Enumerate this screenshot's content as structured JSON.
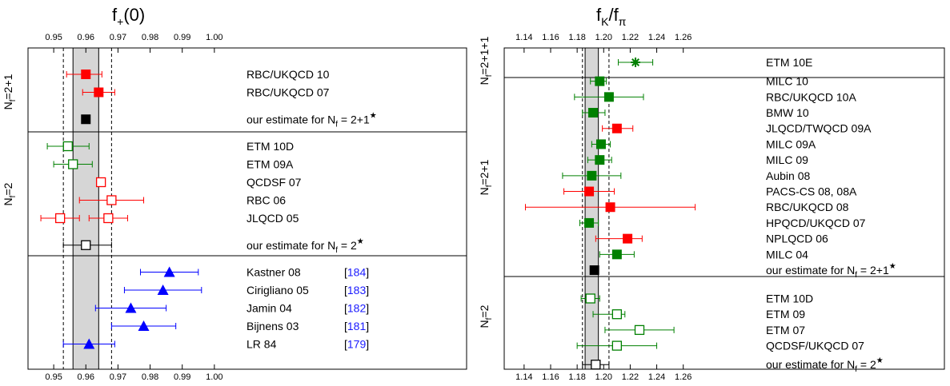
{
  "chart_data": [
    {
      "type": "scatter",
      "title_main": "f",
      "title_sub": "+",
      "title_rest": "(0)",
      "xlim": [
        0.942,
        1.01
      ],
      "xticks": [
        0.95,
        0.96,
        0.97,
        0.98,
        0.99,
        1.0
      ],
      "xtick_labels": [
        "0.95",
        "0.96",
        "0.97",
        "0.98",
        "0.99",
        "1.00"
      ],
      "band": [
        0.956,
        0.964
      ],
      "dashed_lines": [
        0.953,
        0.968
      ],
      "groups": [
        {
          "label_main": "N",
          "label_sub": "f",
          "label_rest": "=2+1",
          "rows": [
            0,
            2
          ]
        },
        {
          "label_main": "N",
          "label_sub": "f",
          "label_rest": "=2",
          "rows": [
            3,
            9
          ]
        },
        {
          "label_main": "",
          "label_sub": "",
          "label_rest": "",
          "rows": [
            10,
            14
          ]
        }
      ],
      "entries": [
        {
          "row": 0,
          "label": "RBC/UKQCD 10",
          "value": 0.96,
          "err": [
            0.954,
            0.965
          ],
          "color": "#ff0000",
          "marker": "square-filled"
        },
        {
          "row": 1,
          "label": "RBC/UKQCD 07",
          "value": 0.964,
          "err": [
            0.959,
            0.969
          ],
          "color": "#ff0000",
          "marker": "square-filled"
        },
        {
          "row": 2.5,
          "label": "our estimate for N",
          "label_sub": "f",
          "label_rest": " = 2+1",
          "label_sup": "★",
          "value": 0.96,
          "err": [
            0.96,
            0.96
          ],
          "color": "#000000",
          "marker": "square-filled"
        },
        {
          "row": 4,
          "label": "ETM 10D",
          "value": 0.9544,
          "err": [
            0.948,
            0.961
          ],
          "color": "#008000",
          "marker": "square-open"
        },
        {
          "row": 5,
          "label": "ETM 09A",
          "value": 0.956,
          "err": [
            0.95,
            0.962
          ],
          "color": "#008000",
          "marker": "square-open"
        },
        {
          "row": 6,
          "label": "QCDSF 07",
          "value": 0.9647,
          "err": [
            0.9647,
            0.9647
          ],
          "color": "#ff0000",
          "marker": "square-open"
        },
        {
          "row": 7,
          "label": "RBC 06",
          "value": 0.968,
          "err": [
            0.958,
            0.978
          ],
          "color": "#ff0000",
          "marker": "square-open"
        },
        {
          "row": 8,
          "label": "JLQCD 05",
          "value": 0.952,
          "err": [
            0.946,
            0.958
          ],
          "color": "#ff0000",
          "marker": "square-open"
        },
        {
          "row": 8,
          "label": "",
          "value": 0.967,
          "err": [
            0.961,
            0.973
          ],
          "color": "#ff0000",
          "marker": "square-open"
        },
        {
          "row": 9.5,
          "label": "our estimate for N",
          "label_sub": "f",
          "label_rest": " = 2",
          "label_sup": "★",
          "value": 0.96,
          "err": [
            0.953,
            0.968
          ],
          "color": "#000000",
          "marker": "square-open"
        },
        {
          "row": 11,
          "label": "Kastner 08",
          "ref": "184",
          "value": 0.986,
          "err": [
            0.977,
            0.995
          ],
          "color": "#0000ff",
          "marker": "triangle"
        },
        {
          "row": 12,
          "label": "Cirigliano 05",
          "ref": "183",
          "value": 0.984,
          "err": [
            0.972,
            0.996
          ],
          "color": "#0000ff",
          "marker": "triangle"
        },
        {
          "row": 13,
          "label": "Jamin 04",
          "ref": "182",
          "value": 0.974,
          "err": [
            0.963,
            0.985
          ],
          "color": "#0000ff",
          "marker": "triangle"
        },
        {
          "row": 14,
          "label": "Bijnens 03",
          "ref": "181",
          "value": 0.978,
          "err": [
            0.968,
            0.988
          ],
          "color": "#0000ff",
          "marker": "triangle"
        },
        {
          "row": 15,
          "label": "LR 84",
          "ref": "179",
          "value": 0.961,
          "err": [
            0.953,
            0.969
          ],
          "color": "#0000ff",
          "marker": "triangle"
        }
      ]
    },
    {
      "type": "scatter",
      "title_main": "f",
      "title_sub": "K",
      "title_rest": "/f",
      "title_sub2": "π",
      "xlim": [
        1.125,
        1.3
      ],
      "xticks": [
        1.14,
        1.16,
        1.18,
        1.2,
        1.22,
        1.24,
        1.26
      ],
      "xtick_labels": [
        "1.14",
        "1.16",
        "1.18",
        "1.20",
        "1.22",
        "1.24",
        "1.26"
      ],
      "band": [
        1.186,
        1.196
      ],
      "dashed_lines": [
        1.184,
        1.204
      ],
      "groups": [
        {
          "label_main": "N",
          "label_sub": "f",
          "label_rest": "=2+1+1",
          "rows": [
            0,
            0
          ]
        },
        {
          "label_main": "N",
          "label_sub": "f",
          "label_rest": "=2+1",
          "rows": [
            1,
            13
          ]
        },
        {
          "label_main": "N",
          "label_sub": "f",
          "label_rest": "=2",
          "rows": [
            14,
            18
          ]
        }
      ],
      "entries": [
        {
          "row": 0,
          "label": "ETM 10E",
          "value": 1.224,
          "err": [
            1.211,
            1.237
          ],
          "color": "#008000",
          "marker": "star"
        },
        {
          "row": 1.2,
          "label": "MILC 10",
          "value": 1.197,
          "err": [
            1.19,
            1.202
          ],
          "color": "#008000",
          "marker": "square-filled"
        },
        {
          "row": 2.2,
          "label": "RBC/UKQCD 10A",
          "value": 1.204,
          "err": [
            1.178,
            1.23
          ],
          "color": "#008000",
          "marker": "square-filled"
        },
        {
          "row": 3.2,
          "label": "BMW 10",
          "value": 1.192,
          "err": [
            1.184,
            1.201
          ],
          "color": "#008000",
          "marker": "square-filled"
        },
        {
          "row": 4.2,
          "label": "JLQCD/TWQCD 09A",
          "value": 1.21,
          "err": [
            1.199,
            1.222
          ],
          "color": "#ff0000",
          "marker": "square-filled"
        },
        {
          "row": 5.2,
          "label": "MILC 09A",
          "value": 1.198,
          "err": [
            1.191,
            1.205
          ],
          "color": "#008000",
          "marker": "square-filled"
        },
        {
          "row": 6.2,
          "label": "MILC 09",
          "value": 1.197,
          "err": [
            1.188,
            1.206
          ],
          "color": "#008000",
          "marker": "square-filled"
        },
        {
          "row": 7.2,
          "label": "Aubin 08",
          "value": 1.191,
          "err": [
            1.169,
            1.213
          ],
          "color": "#008000",
          "marker": "square-filled"
        },
        {
          "row": 8.2,
          "label": "PACS-CS 08, 08A",
          "value": 1.189,
          "err": [
            1.17,
            1.208
          ],
          "color": "#ff0000",
          "marker": "square-filled"
        },
        {
          "row": 9.2,
          "label": "RBC/UKQCD 08",
          "value": 1.205,
          "err": [
            1.141,
            1.269
          ],
          "color": "#ff0000",
          "marker": "square-filled"
        },
        {
          "row": 10.2,
          "label": "HPQCD/UKQCD 07",
          "value": 1.189,
          "err": [
            1.182,
            1.196
          ],
          "color": "#008000",
          "marker": "square-filled"
        },
        {
          "row": 11.2,
          "label": "NPLQCD 06",
          "value": 1.218,
          "err": [
            1.194,
            1.229
          ],
          "color": "#ff0000",
          "marker": "square-filled"
        },
        {
          "row": 12.2,
          "label": "MILC 04",
          "value": 1.21,
          "err": [
            1.197,
            1.223
          ],
          "color": "#008000",
          "marker": "square-filled"
        },
        {
          "row": 13.2,
          "label": "our estimate for N",
          "label_sub": "f",
          "label_rest": " = 2+1",
          "label_sup": "★",
          "value": 1.193,
          "err": [
            1.193,
            1.193
          ],
          "color": "#000000",
          "marker": "square-filled"
        },
        {
          "row": 15,
          "label": "ETM 10D",
          "value": 1.19,
          "err": [
            1.183,
            1.197
          ],
          "color": "#008000",
          "marker": "square-open"
        },
        {
          "row": 16,
          "label": "ETM 09",
          "value": 1.21,
          "err": [
            1.192,
            1.216
          ],
          "color": "#008000",
          "marker": "square-open"
        },
        {
          "row": 17,
          "label": "ETM 07",
          "value": 1.227,
          "err": [
            1.201,
            1.253
          ],
          "color": "#008000",
          "marker": "square-open"
        },
        {
          "row": 18,
          "label": "QCDSF/UKQCD 07",
          "value": 1.21,
          "err": [
            1.18,
            1.24
          ],
          "color": "#008000",
          "marker": "square-open"
        },
        {
          "row": 19.2,
          "label": "our estimate for N",
          "label_sub": "f",
          "label_rest": " = 2",
          "label_sup": "★",
          "value": 1.194,
          "err": [
            1.184,
            1.204
          ],
          "color": "#000000",
          "marker": "square-open"
        }
      ]
    }
  ]
}
